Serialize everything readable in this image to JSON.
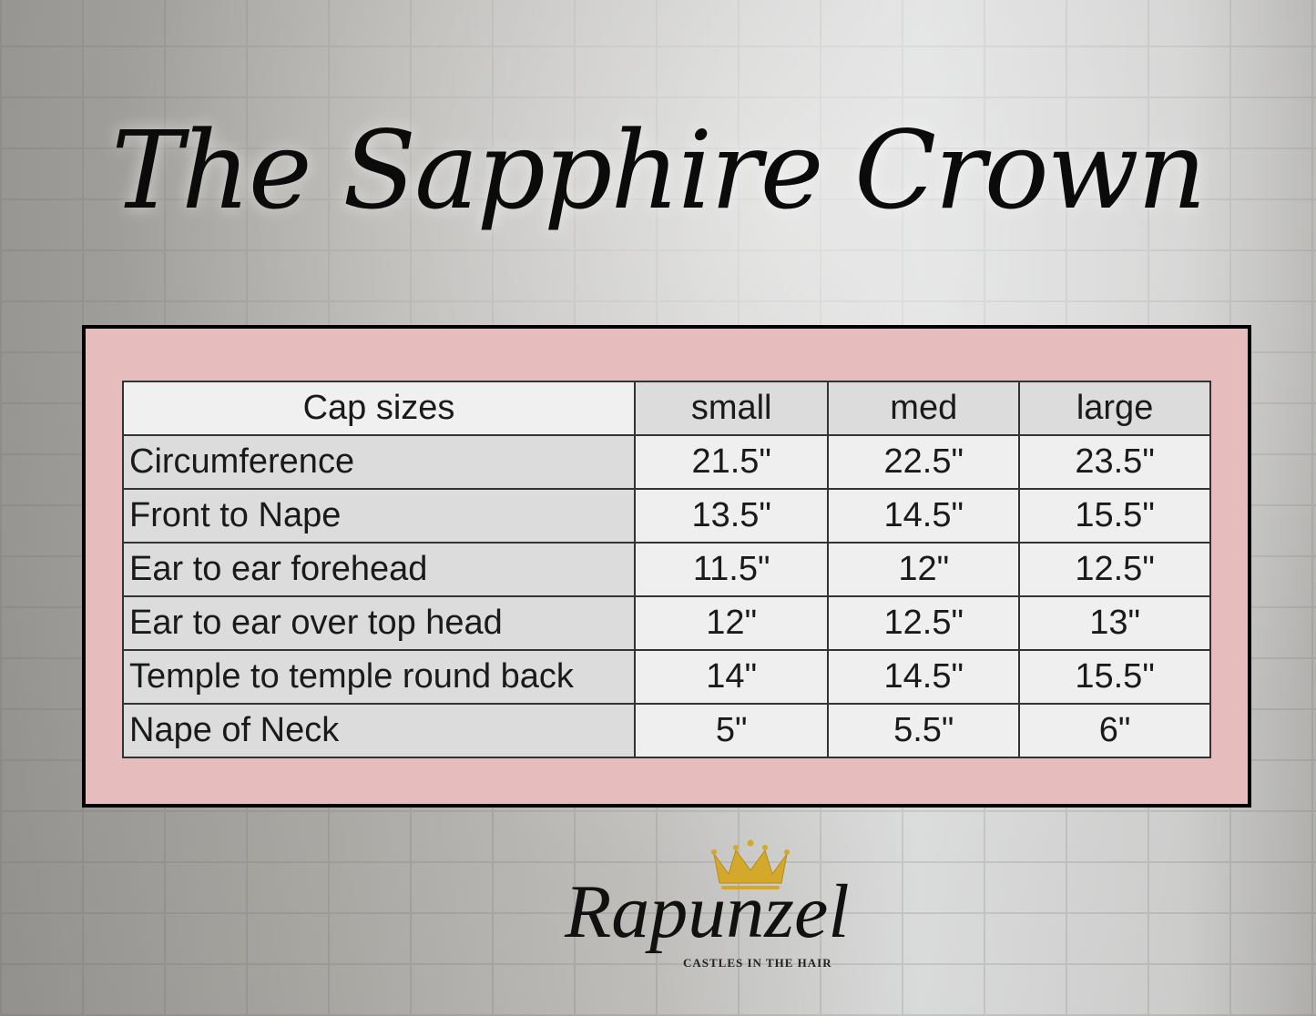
{
  "title": "The Sapphire Crown",
  "table": {
    "header": [
      "Cap sizes",
      "small",
      "med",
      "large"
    ],
    "rows": [
      [
        "Circumference",
        "21.5\"",
        "22.5\"",
        "23.5\""
      ],
      [
        "Front to Nape",
        "13.5\"",
        "14.5\"",
        "15.5\""
      ],
      [
        "Ear to ear forehead",
        "11.5\"",
        "12\"",
        "12.5\""
      ],
      [
        "Ear to ear over top head",
        "12\"",
        "12.5\"",
        "13\""
      ],
      [
        "Temple to temple round back",
        "14\"",
        "14.5\"",
        "15.5\""
      ],
      [
        "Nape of Neck",
        "5\"",
        "5.5\"",
        "6\""
      ]
    ]
  },
  "logo": {
    "name": "Rapunzel",
    "tagline": "CASTLES IN THE HAIR",
    "icon": "crown-icon",
    "icon_color": "#d4a82a"
  },
  "colors": {
    "frame_bg": "#e6bcbc",
    "frame_border": "#000000"
  }
}
